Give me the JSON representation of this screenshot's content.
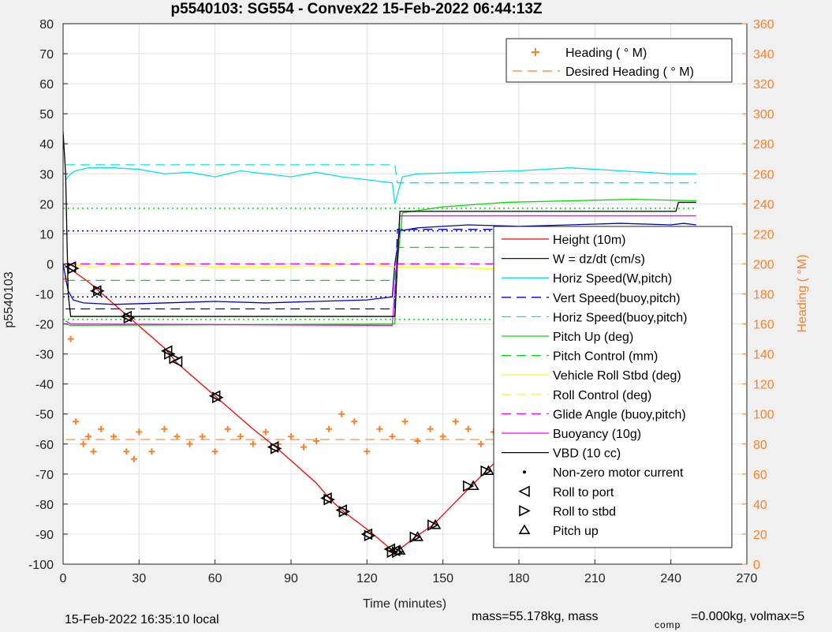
{
  "chart_data": {
    "type": "line",
    "title": "p5540103: SG554 - Convex22 15-Feb-2022 06:44:13Z",
    "xlabel": "Time (minutes)",
    "ylabel_left": "p5540103",
    "ylabel_right": "Heading (  °M)",
    "xlim": [
      0,
      270
    ],
    "ylim_left": [
      -100,
      80
    ],
    "ylim_right": [
      0,
      360
    ],
    "x_ticks": [
      "0",
      "30",
      "60",
      "90",
      "120",
      "150",
      "180",
      "210",
      "240",
      "270"
    ],
    "y_left_ticks": [
      "-100",
      "-90",
      "-80",
      "-70",
      "-60",
      "-50",
      "-40",
      "-30",
      "-20",
      "-10",
      "0",
      "10",
      "20",
      "30",
      "40",
      "50",
      "60",
      "70",
      "80"
    ],
    "y_right_ticks": [
      "0",
      "20",
      "40",
      "60",
      "80",
      "100",
      "120",
      "140",
      "160",
      "180",
      "200",
      "220",
      "240",
      "260",
      "280",
      "300",
      "320",
      "340",
      "360"
    ],
    "grid": true,
    "footer_left": "15-Feb-2022 16:35:10 local",
    "footer_right_a": "mass=55.178kg, mass",
    "footer_right_sub": "comp",
    "footer_right_b": "=0.000kg, volmax=5",
    "legend_right_axis": [
      {
        "label": "Heading (  ° M)",
        "color": "#ff7f27",
        "style": "plus"
      },
      {
        "label": "Desired Heading (    ° M)",
        "color": "#ff7f27",
        "style": "dashed"
      }
    ],
    "legend_left_axis": [
      {
        "label": "Height (10m)",
        "color": "#ff0000",
        "style": "solid"
      },
      {
        "label": "W = dz/dt (cm/s)",
        "color": "#0000cc",
        "style": "solid"
      },
      {
        "label": "Horiz Speed(W,pitch)",
        "color": "#00e5e5",
        "style": "solid"
      },
      {
        "label": "Vert Speed(buoy,pitch)",
        "color": "#0000cc",
        "style": "dashed"
      },
      {
        "label": "Horiz Speed(buoy,pitch)",
        "color": "#00e5e5",
        "style": "dashed"
      },
      {
        "label": "Pitch Up (deg)",
        "color": "#00dd00",
        "style": "solid"
      },
      {
        "label": "Pitch Control (mm)",
        "color": "#00dd00",
        "style": "dashed"
      },
      {
        "label": "Vehicle Roll Stbd (deg)",
        "color": "#ffff00",
        "style": "solid"
      },
      {
        "label": "Roll Control (deg)",
        "color": "#ffff00",
        "style": "dashed"
      },
      {
        "label": "Glide Angle (buoy,pitch)",
        "color": "#ff00ff",
        "style": "dashed"
      },
      {
        "label": "Buoyancy (10g)",
        "color": "#ff00ff",
        "style": "solid"
      },
      {
        "label": "VBD (10 cc)",
        "color": "#000000",
        "style": "solid"
      },
      {
        "label": "Non-zero motor current",
        "color": "#000000",
        "style": "dot"
      },
      {
        "label": "Roll to port",
        "color": "#000000",
        "style": "tri-left"
      },
      {
        "label": "Roll to stbd",
        "color": "#000000",
        "style": "tri-right"
      },
      {
        "label": "Pitch up",
        "color": "#000000",
        "style": "tri-up"
      }
    ],
    "series": [
      {
        "key": "height",
        "color": "#ff0000",
        "style": "solid",
        "x": [
          0,
          10,
          25,
          40,
          45,
          60,
          75,
          84,
          100,
          105,
          110,
          121,
          128,
          131,
          133,
          139,
          146,
          160,
          167,
          177,
          190,
          202,
          216,
          225,
          236,
          245,
          250
        ],
        "y": [
          0,
          -6,
          -17,
          -28,
          -33,
          -44,
          -55,
          -61,
          -73,
          -78,
          -82,
          -89,
          -94,
          -96,
          -95,
          -91,
          -87,
          -75,
          -69,
          -61,
          -51,
          -40,
          -27,
          -20,
          -13,
          -6,
          0
        ]
      },
      {
        "key": "w",
        "color": "#0000cc",
        "style": "solid",
        "x": [
          0,
          2,
          4,
          8,
          20,
          40,
          60,
          80,
          100,
          120,
          130,
          131,
          133,
          140,
          160,
          180,
          200,
          220,
          240,
          245,
          250
        ],
        "y": [
          0,
          -9,
          -12,
          -13,
          -13.5,
          -13,
          -12.5,
          -13,
          -12.5,
          -12,
          -11,
          0,
          11,
          12,
          13,
          12.5,
          13,
          13.5,
          13,
          13.5,
          13
        ]
      },
      {
        "key": "horiz",
        "color": "#00e5e5",
        "style": "solid",
        "x": [
          1,
          3,
          5,
          10,
          20,
          30,
          40,
          50,
          60,
          70,
          80,
          90,
          100,
          110,
          120,
          130,
          131,
          134,
          140,
          160,
          180,
          200,
          220,
          240,
          250
        ],
        "y": [
          28,
          30,
          31,
          32,
          32,
          31.5,
          30,
          30.5,
          29,
          31,
          30,
          29,
          30.5,
          29,
          28,
          27,
          20,
          29,
          30,
          30.5,
          31,
          32,
          31,
          30,
          30
        ]
      },
      {
        "key": "vert_buoy",
        "color": "#0000cc",
        "style": "dashed",
        "x": [
          1,
          131,
          132,
          250
        ],
        "y": [
          -15,
          -15,
          11.5,
          11.5
        ]
      },
      {
        "key": "horiz_buoy",
        "color": "#00e5e5",
        "style": "dashed",
        "x": [
          1,
          131,
          132,
          250
        ],
        "y": [
          33,
          33,
          27,
          27
        ]
      },
      {
        "key": "pitch_up",
        "color": "#00dd00",
        "style": "solid",
        "x": [
          1,
          3,
          131,
          132,
          134,
          150,
          175,
          200,
          225,
          250
        ],
        "y": [
          -20,
          -20.5,
          -20,
          0,
          17,
          19,
          20.5,
          21,
          21.5,
          21
        ]
      },
      {
        "key": "pitch_ctrl",
        "color": "#00dd00",
        "style": "dashed",
        "x": [
          1,
          131,
          132,
          250
        ],
        "y": [
          -5.5,
          -5.5,
          5.5,
          5.5
        ]
      },
      {
        "key": "roll",
        "color": "#ffff00",
        "style": "solid",
        "x": [
          1,
          10,
          30,
          60,
          90,
          120,
          131,
          132,
          150,
          180,
          210,
          240,
          250
        ],
        "y": [
          0,
          -1,
          0,
          -1,
          -1,
          0,
          -1,
          -1,
          -1,
          -2,
          -1,
          -2,
          -1
        ]
      },
      {
        "key": "roll_ctrl",
        "color": "#ffff00",
        "style": "dashed",
        "x": [
          1,
          250
        ],
        "y": [
          0,
          0
        ]
      },
      {
        "key": "glide",
        "color": "#ff00ff",
        "style": "dashed",
        "x": [
          1,
          250
        ],
        "y": [
          0,
          0
        ]
      },
      {
        "key": "buoyancy",
        "color": "#ff00ff",
        "style": "solid",
        "x": [
          1,
          3,
          130,
          133,
          250
        ],
        "y": [
          -19,
          -20,
          -20.5,
          16,
          16
        ]
      },
      {
        "key": "vbd",
        "color": "#000000",
        "style": "solid",
        "x": [
          0,
          1,
          2,
          3,
          131,
          133,
          242,
          243,
          250
        ],
        "y": [
          44,
          30,
          -10,
          -17.5,
          -17.5,
          17.5,
          17.5,
          20.5,
          20.5
        ]
      },
      {
        "key": "ref_green_dotted",
        "color": "#00dd00",
        "style": "dotted",
        "x": [
          0,
          250
        ],
        "y": [
          18.5,
          18.5
        ]
      },
      {
        "key": "ref_green_dotted_neg",
        "color": "#00dd00",
        "style": "dotted",
        "x": [
          0,
          250
        ],
        "y": [
          -18.5,
          -18.5
        ]
      },
      {
        "key": "ref_blue_dotted",
        "color": "#0000cc",
        "style": "dotted",
        "x": [
          0,
          250
        ],
        "y": [
          11,
          11
        ]
      },
      {
        "key": "ref_blue_dotted_neg",
        "color": "#0000cc",
        "style": "dotted",
        "x": [
          0,
          250
        ],
        "y": [
          -11,
          -11
        ]
      }
    ],
    "heading": {
      "color": "#ff7f27",
      "x": [
        1,
        3,
        5,
        8,
        10,
        12,
        15,
        20,
        25,
        28,
        30,
        35,
        40,
        45,
        50,
        55,
        60,
        65,
        70,
        75,
        80,
        85,
        90,
        95,
        100,
        105,
        110,
        115,
        120,
        125,
        130,
        135,
        140,
        145,
        150,
        155,
        160,
        165,
        170,
        175,
        180,
        185,
        190,
        195,
        200,
        205,
        210,
        215,
        220,
        225,
        230,
        235,
        240,
        245,
        250
      ],
      "y": [
        190,
        150,
        95,
        80,
        85,
        75,
        90,
        85,
        75,
        70,
        88,
        75,
        90,
        85,
        80,
        85,
        75,
        90,
        85,
        80,
        88,
        80,
        85,
        78,
        82,
        90,
        100,
        95,
        75,
        90,
        85,
        95,
        82,
        90,
        85,
        95,
        90,
        80,
        88,
        75,
        80,
        95,
        100,
        90,
        85,
        90,
        88,
        80,
        85,
        90,
        85,
        75,
        80,
        85,
        88
      ]
    },
    "desired_heading": {
      "color": "#ff7f27",
      "x": [
        1,
        250
      ],
      "y": [
        83,
        83
      ]
    },
    "roll_port_markers": [
      [
        3,
        -1
      ],
      [
        13,
        -9
      ],
      [
        25,
        -17.5
      ],
      [
        41,
        -29
      ],
      [
        45,
        -32.5
      ],
      [
        60,
        -44
      ],
      [
        83,
        -61
      ],
      [
        104,
        -78
      ],
      [
        110,
        -82
      ],
      [
        120,
        -90
      ],
      [
        129,
        -95
      ],
      [
        131,
        -95.5
      ]
    ],
    "roll_stbd_markers": [
      [
        4,
        -1.5
      ],
      [
        14,
        -9
      ],
      [
        26,
        -18
      ],
      [
        42,
        -30
      ],
      [
        44,
        -31.5
      ],
      [
        61,
        -44.5
      ],
      [
        84,
        -61.5
      ],
      [
        105,
        -78.5
      ],
      [
        111,
        -82.5
      ],
      [
        121,
        -90.5
      ],
      [
        130,
        -96
      ],
      [
        132,
        -96
      ],
      [
        139,
        -91
      ],
      [
        146,
        -87
      ],
      [
        160,
        -74
      ],
      [
        167,
        -69
      ],
      [
        177,
        -60
      ],
      [
        189,
        -51
      ],
      [
        191,
        -49
      ],
      [
        202,
        -40
      ],
      [
        216,
        -27
      ],
      [
        222,
        -23
      ],
      [
        227,
        -20
      ],
      [
        230,
        -17
      ],
      [
        232,
        -16
      ],
      [
        244,
        -6
      ],
      [
        251,
        0
      ]
    ],
    "pitch_up_markers": [
      [
        133,
        -95.5
      ],
      [
        140,
        -91
      ],
      [
        147,
        -87
      ],
      [
        162,
        -74
      ],
      [
        168,
        -69
      ],
      [
        178,
        -60
      ],
      [
        190,
        -51
      ],
      [
        203,
        -40
      ],
      [
        217,
        -27
      ],
      [
        223,
        -23
      ],
      [
        228,
        -20
      ],
      [
        231,
        -17
      ],
      [
        245,
        -6
      ]
    ]
  }
}
